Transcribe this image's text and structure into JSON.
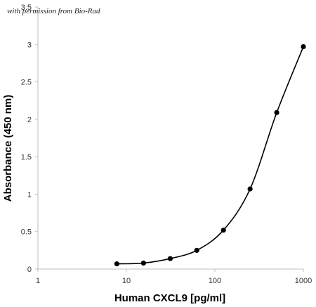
{
  "watermark": "with permission from Bio-Rad",
  "chart_data": {
    "type": "scatter",
    "xlabel": "Human CXCL9 [pg/ml]",
    "ylabel": "Absorbance (450 nm)",
    "xscale": "log",
    "xlim": [
      1,
      1000
    ],
    "ylim": [
      0,
      3.5
    ],
    "xticks": [
      1,
      10,
      100,
      1000
    ],
    "xtick_labels": [
      "1",
      "10",
      "100",
      "1000"
    ],
    "yticks": [
      0,
      0.5,
      1,
      1.5,
      2,
      2.5,
      3,
      3.5
    ],
    "ytick_labels": [
      "0",
      "0.5",
      "1",
      "1.5",
      "2",
      "2.5",
      "3",
      "3.5"
    ],
    "grid": false,
    "legend": "none",
    "line": "smooth curve through points",
    "colors": {
      "marker": "#000000",
      "line": "#000000",
      "axis": "#bfbfbf"
    },
    "series": [
      {
        "x": [
          7.8,
          15.6,
          31.3,
          62.5,
          125,
          250,
          500,
          1000
        ],
        "y": [
          0.07,
          0.08,
          0.14,
          0.25,
          0.52,
          1.07,
          2.09,
          2.97
        ]
      }
    ]
  }
}
